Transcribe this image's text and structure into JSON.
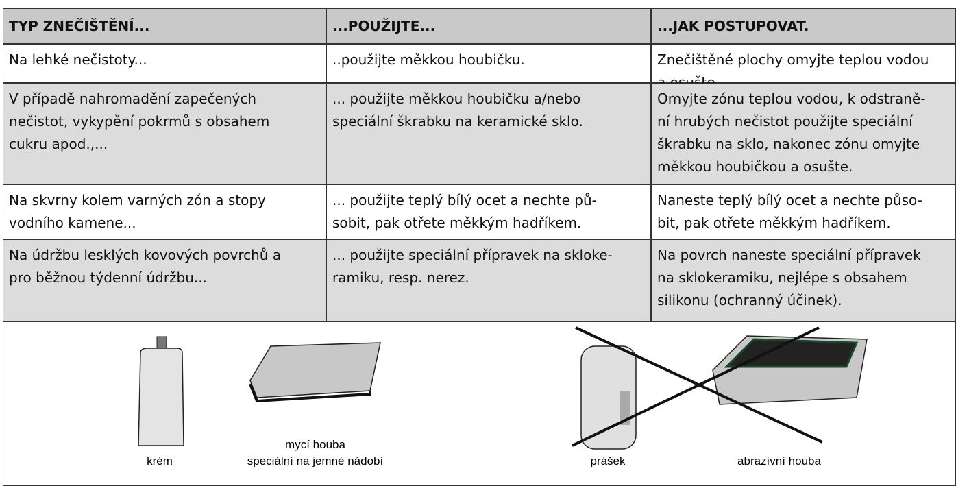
{
  "table": {
    "header": [
      "TYP ZNEČIŠTĚNÍ...",
      "...POUŽIJTE...",
      "...JAK POSTUPOVAT."
    ],
    "rows": [
      [
        [
          "Na lehké nečistoty..."
        ],
        [
          "..použijte měkkou houbičku."
        ],
        [
          "Znečištěné plochy omyjte teplou vodou",
          "a osušte."
        ]
      ],
      [
        [
          "V případě nahromadění zapečených",
          "nečistot, vykypění pokrmů s obsahem",
          "cukru apod.,..."
        ],
        [
          "... použijte měkkou houbičku a/nebo",
          "speciální škrabku na keramické sklo."
        ],
        [
          "Omyjte zónu teplou vodou, k odstraně-",
          "ní hrubých nečistot použijte speciální",
          "škrabku na sklo, nakonec zónu omyjte",
          "měkkou houbičkou a osušte."
        ]
      ],
      [
        [
          "Na skvrny kolem varných zón a stopy",
          "vodního kamene..."
        ],
        [
          "... použijte teplý bílý ocet a nechte pů-",
          "sobit, pak otřete měkkým hadříkem."
        ],
        [
          "Naneste teplý bílý ocet a nechte půso-",
          "bit, pak otřete měkkým hadříkem."
        ]
      ],
      [
        [
          "Na údržbu lesklých kovových povrchů a",
          "pro běžnou týdenní údržbu..."
        ],
        [
          "... použijte speciální přípravek na skloke-",
          "ramiku, resp. nerez."
        ],
        [
          "Na povrch naneste speciální přípravek",
          "na sklokeramiku, nejlépe s obsahem",
          "silikonu (ochranný účinek)."
        ]
      ]
    ]
  },
  "images": {
    "cream": "krém",
    "sponge": [
      "mycí houba",
      "speciální na jemné nádobí"
    ],
    "powder": "prášek",
    "abrasive": "abrazívní houba"
  }
}
